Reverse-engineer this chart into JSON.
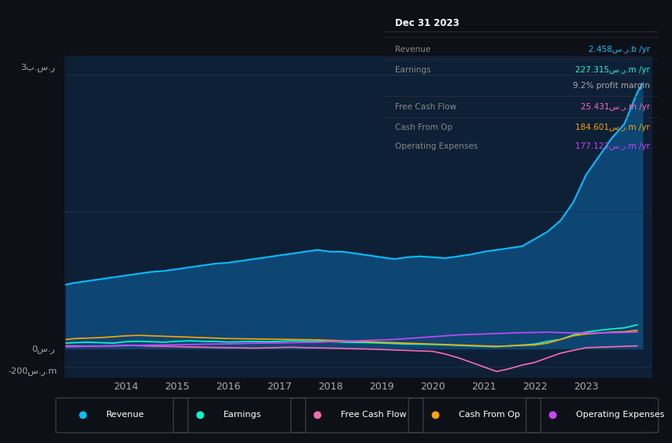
{
  "bg_color": "#0d1117",
  "plot_bg_color": "#0d2035",
  "grid_color": "#1e3a5a",
  "title_text": "Dec 31 2023",
  "info_box": {
    "rows": [
      {
        "label": "Revenue",
        "value": "2.458س.ر.b /yr",
        "color": "#00bfff"
      },
      {
        "label": "Earnings",
        "value": "227.315س.ر.m /yr",
        "color": "#00ffcc"
      },
      {
        "label": "",
        "value": "9.2% profit margin",
        "color": "#aaaaaa"
      },
      {
        "label": "Free Cash Flow",
        "value": "25.431س.ر.m /yr",
        "color": "#ff69b4"
      },
      {
        "label": "Cash From Op",
        "value": "184.601س.ر.m /yr",
        "color": "#ffa500"
      },
      {
        "label": "Operating Expenses",
        "value": "177.123س.ر.m /yr",
        "color": "#cc44ff"
      }
    ]
  },
  "ylabel_top": "3ب.س.ر",
  "ylabel_zero": "0س.ر",
  "ylabel_neg": "-200س.ر.m",
  "x_tick_labels": [
    "2014",
    "2015",
    "2016",
    "2017",
    "2018",
    "2019",
    "2020",
    "2021",
    "2022",
    "2023"
  ],
  "x_tick_vals": [
    2014,
    2015,
    2016,
    2017,
    2018,
    2019,
    2020,
    2021,
    2022,
    2023
  ],
  "ylim": [
    -320,
    3200
  ],
  "xlim": [
    2012.8,
    2024.3
  ],
  "revenue": {
    "x": [
      2012.83,
      2013.0,
      2013.25,
      2013.5,
      2013.75,
      2014.0,
      2014.25,
      2014.5,
      2014.75,
      2015.0,
      2015.25,
      2015.5,
      2015.75,
      2016.0,
      2016.25,
      2016.5,
      2016.75,
      2017.0,
      2017.25,
      2017.5,
      2017.75,
      2018.0,
      2018.25,
      2018.5,
      2018.75,
      2019.0,
      2019.25,
      2019.5,
      2019.75,
      2020.0,
      2020.25,
      2020.5,
      2020.75,
      2021.0,
      2021.25,
      2021.5,
      2021.75,
      2022.0,
      2022.25,
      2022.5,
      2022.75,
      2023.0,
      2023.25,
      2023.5,
      2023.75,
      2024.0,
      2024.1
    ],
    "y": [
      700,
      720,
      740,
      760,
      780,
      800,
      820,
      840,
      850,
      870,
      890,
      910,
      930,
      940,
      960,
      980,
      1000,
      1020,
      1040,
      1060,
      1080,
      1060,
      1060,
      1040,
      1020,
      1000,
      980,
      1000,
      1010,
      1000,
      990,
      1010,
      1030,
      1060,
      1080,
      1100,
      1120,
      1200,
      1280,
      1400,
      1600,
      1900,
      2100,
      2300,
      2458,
      2800,
      2900
    ],
    "color": "#00bfff",
    "fill": "#0d4a7a"
  },
  "earnings": {
    "x": [
      2012.83,
      2013.0,
      2013.25,
      2013.5,
      2013.75,
      2014.0,
      2014.25,
      2014.5,
      2014.75,
      2015.0,
      2015.25,
      2015.5,
      2015.75,
      2016.0,
      2016.25,
      2016.5,
      2016.75,
      2017.0,
      2017.25,
      2017.5,
      2017.75,
      2018.0,
      2018.25,
      2018.5,
      2018.75,
      2019.0,
      2019.25,
      2019.5,
      2019.75,
      2020.0,
      2020.25,
      2020.5,
      2020.75,
      2021.0,
      2021.25,
      2021.5,
      2021.75,
      2022.0,
      2022.25,
      2022.5,
      2022.75,
      2023.0,
      2023.25,
      2023.5,
      2023.75,
      2024.0
    ],
    "y": [
      60,
      65,
      70,
      65,
      60,
      75,
      80,
      75,
      70,
      80,
      85,
      80,
      78,
      72,
      75,
      78,
      75,
      80,
      85,
      82,
      80,
      76,
      70,
      68,
      65,
      60,
      55,
      50,
      48,
      45,
      40,
      35,
      30,
      25,
      20,
      30,
      40,
      50,
      80,
      100,
      150,
      180,
      200,
      215,
      227,
      260
    ],
    "color": "#00ffcc"
  },
  "free_cash_flow": {
    "x": [
      2012.83,
      2013.0,
      2013.25,
      2013.5,
      2013.75,
      2014.0,
      2014.25,
      2014.5,
      2014.75,
      2015.0,
      2015.25,
      2015.5,
      2015.75,
      2016.0,
      2016.25,
      2016.5,
      2016.75,
      2017.0,
      2017.25,
      2017.5,
      2017.75,
      2018.0,
      2018.25,
      2018.5,
      2018.75,
      2019.0,
      2019.25,
      2019.5,
      2019.75,
      2020.0,
      2020.25,
      2020.5,
      2020.75,
      2021.0,
      2021.25,
      2021.5,
      2021.75,
      2022.0,
      2022.25,
      2022.5,
      2022.75,
      2023.0,
      2023.25,
      2023.5,
      2023.75,
      2024.0
    ],
    "y": [
      30,
      28,
      25,
      28,
      30,
      35,
      32,
      28,
      25,
      22,
      18,
      15,
      12,
      10,
      8,
      5,
      8,
      12,
      15,
      10,
      8,
      5,
      2,
      -2,
      -5,
      -10,
      -15,
      -20,
      -25,
      -30,
      -60,
      -100,
      -150,
      -200,
      -250,
      -220,
      -180,
      -150,
      -100,
      -50,
      -20,
      10,
      15,
      20,
      25,
      30
    ],
    "color": "#ff69b4"
  },
  "cash_from_op": {
    "x": [
      2012.83,
      2013.0,
      2013.25,
      2013.5,
      2013.75,
      2014.0,
      2014.25,
      2014.5,
      2014.75,
      2015.0,
      2015.25,
      2015.5,
      2015.75,
      2016.0,
      2016.25,
      2016.5,
      2016.75,
      2017.0,
      2017.25,
      2017.5,
      2017.75,
      2018.0,
      2018.25,
      2018.5,
      2018.75,
      2019.0,
      2019.25,
      2019.5,
      2019.75,
      2020.0,
      2020.25,
      2020.5,
      2020.75,
      2021.0,
      2021.25,
      2021.5,
      2021.75,
      2022.0,
      2022.25,
      2022.5,
      2022.75,
      2023.0,
      2023.25,
      2023.5,
      2023.75,
      2024.0
    ],
    "y": [
      100,
      110,
      115,
      120,
      130,
      140,
      145,
      140,
      135,
      130,
      125,
      120,
      115,
      110,
      108,
      106,
      104,
      102,
      100,
      98,
      96,
      90,
      85,
      80,
      75,
      70,
      65,
      60,
      55,
      50,
      45,
      40,
      35,
      30,
      25,
      30,
      35,
      40,
      60,
      100,
      140,
      160,
      170,
      180,
      184,
      200
    ],
    "color": "#ffa500"
  },
  "op_expenses": {
    "x": [
      2012.83,
      2013.0,
      2013.25,
      2013.5,
      2013.75,
      2014.0,
      2014.25,
      2014.5,
      2014.75,
      2015.0,
      2015.25,
      2015.5,
      2015.75,
      2016.0,
      2016.25,
      2016.5,
      2016.75,
      2017.0,
      2017.25,
      2017.5,
      2017.75,
      2018.0,
      2018.25,
      2018.5,
      2018.75,
      2019.0,
      2019.25,
      2019.5,
      2019.75,
      2020.0,
      2020.25,
      2020.5,
      2020.75,
      2021.0,
      2021.25,
      2021.5,
      2021.75,
      2022.0,
      2022.25,
      2022.5,
      2022.75,
      2023.0,
      2023.25,
      2023.5,
      2023.75,
      2024.0
    ],
    "y": [
      20,
      22,
      25,
      28,
      30,
      32,
      35,
      38,
      40,
      42,
      45,
      48,
      50,
      52,
      55,
      58,
      60,
      62,
      65,
      68,
      70,
      75,
      80,
      85,
      90,
      95,
      100,
      110,
      120,
      130,
      140,
      150,
      155,
      160,
      165,
      170,
      175,
      177,
      180,
      175,
      172,
      170,
      172,
      174,
      177,
      180
    ],
    "color": "#cc44ff"
  },
  "legend": [
    {
      "label": "Revenue",
      "color": "#00bfff"
    },
    {
      "label": "Earnings",
      "color": "#00ffcc"
    },
    {
      "label": "Free Cash Flow",
      "color": "#ff69b4"
    },
    {
      "label": "Cash From Op",
      "color": "#ffa500"
    },
    {
      "label": "Operating Expenses",
      "color": "#cc44ff"
    }
  ]
}
